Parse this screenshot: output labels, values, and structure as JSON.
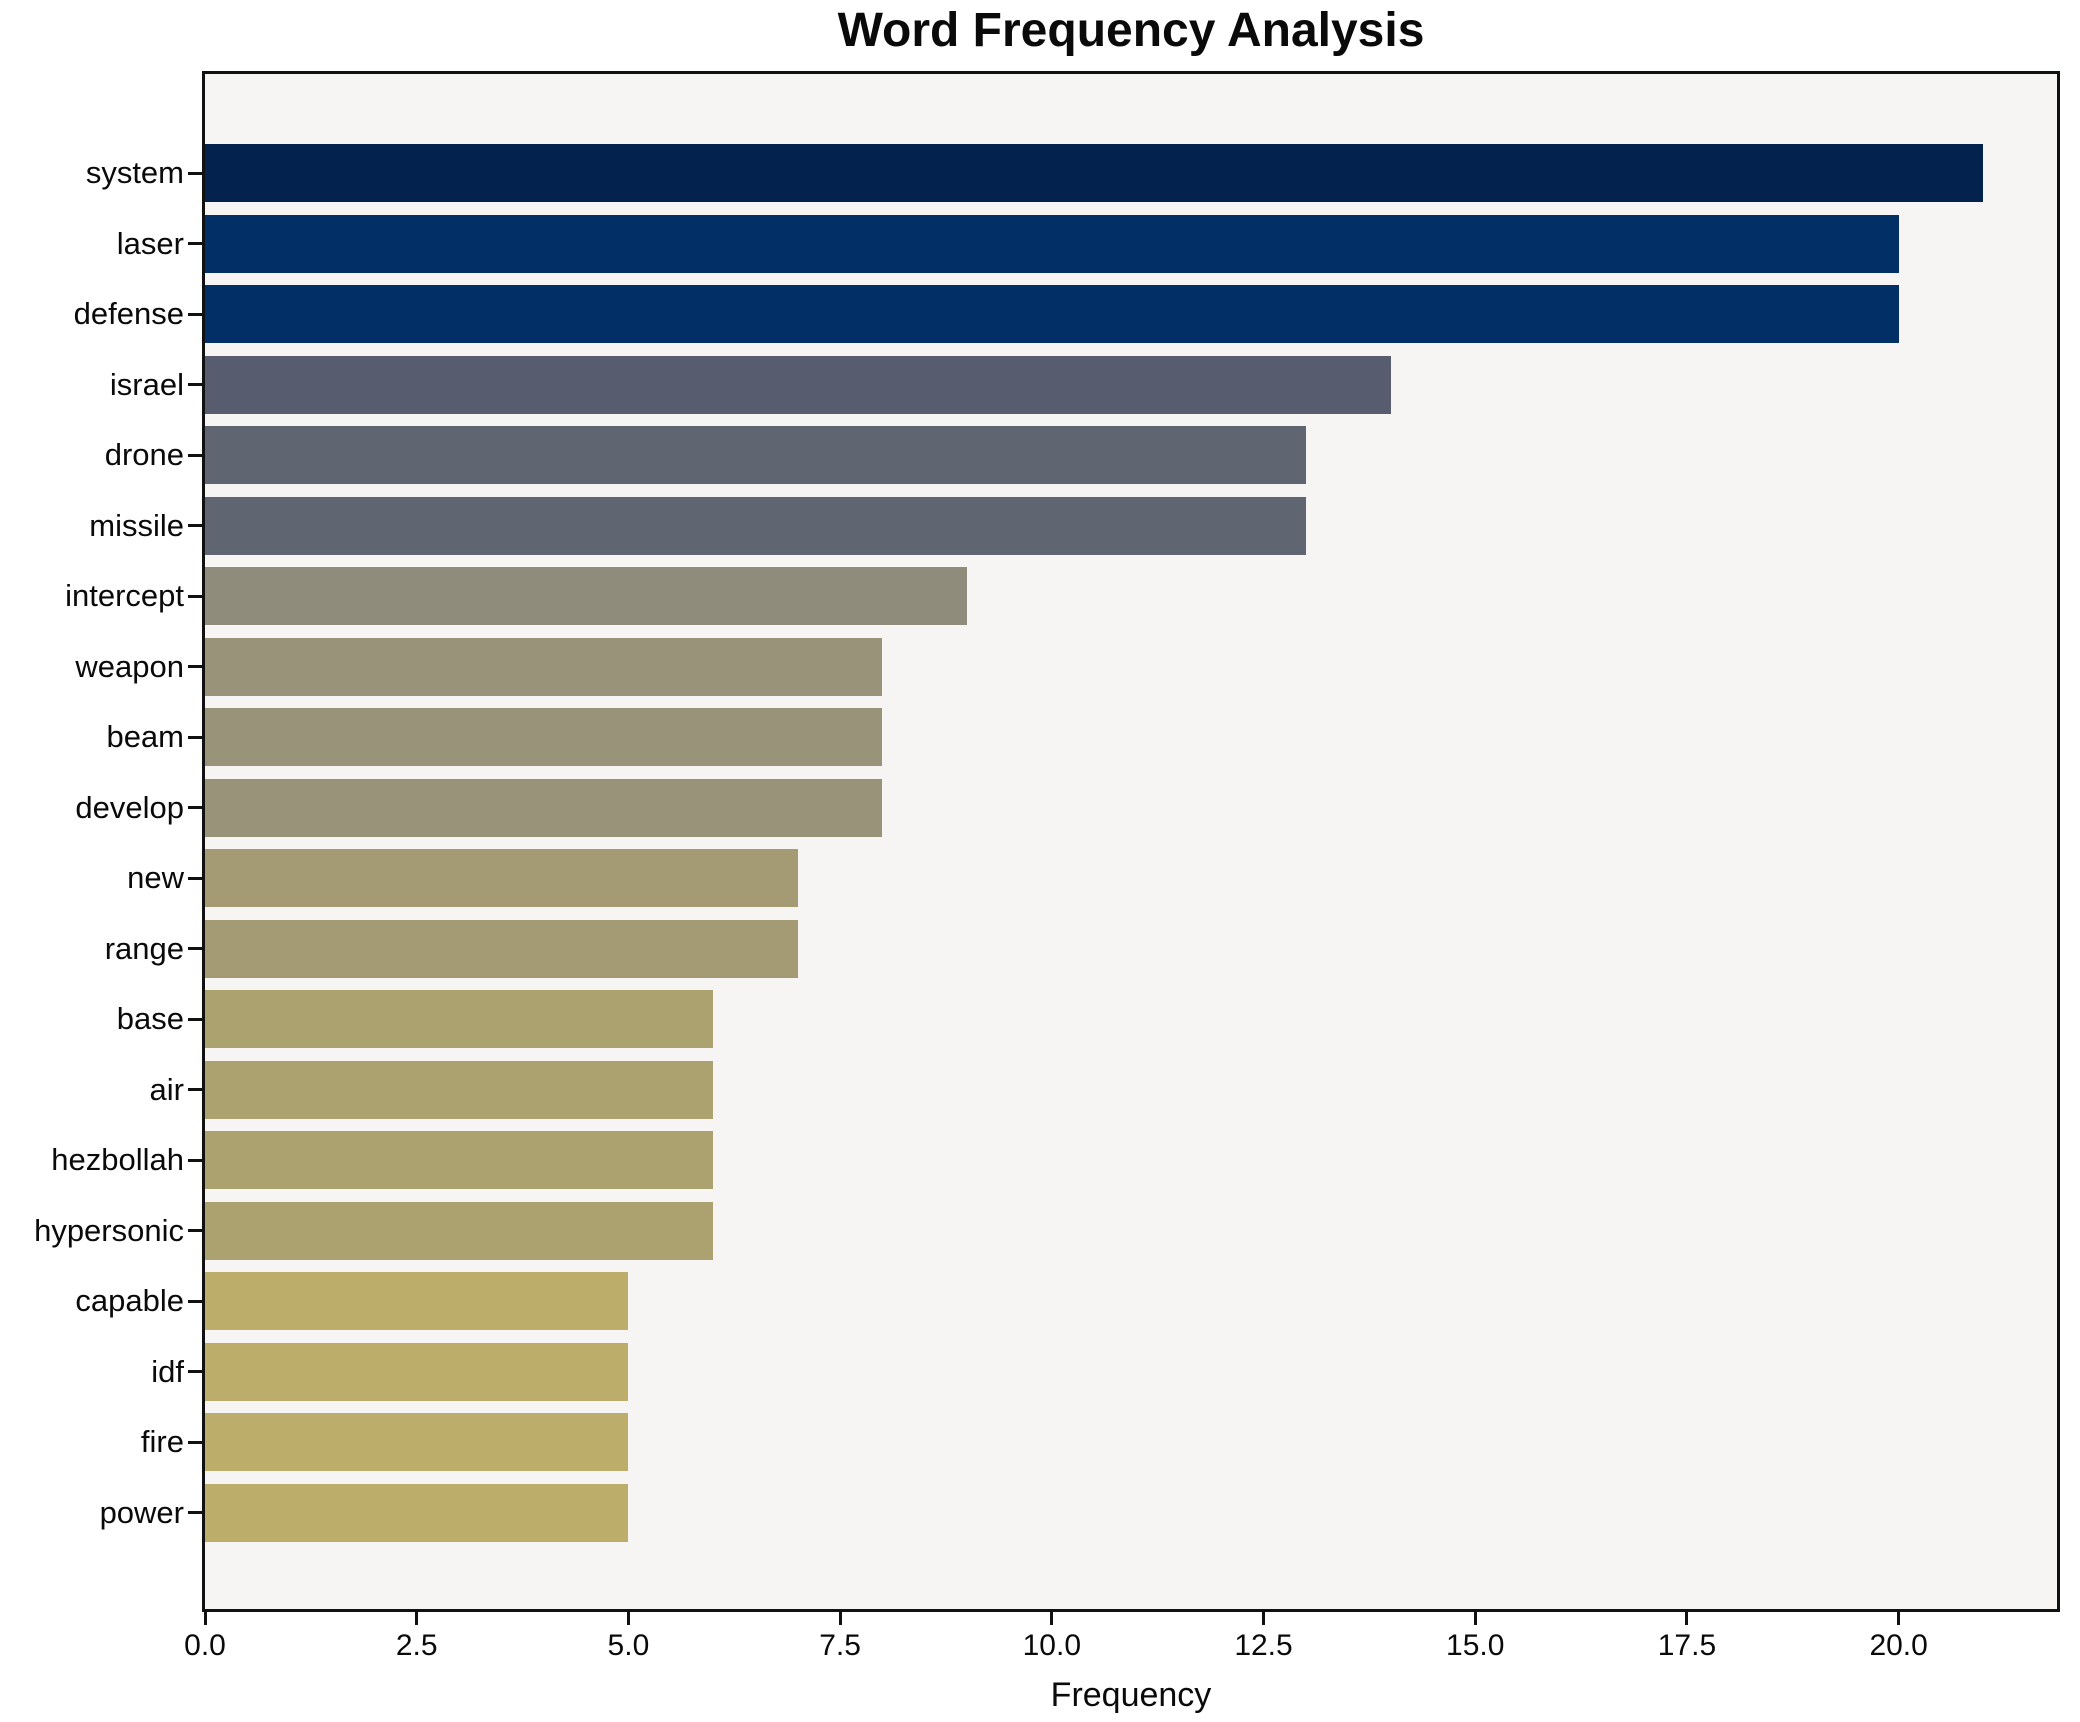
{
  "chart_data": {
    "type": "bar",
    "orientation": "horizontal",
    "title": "Word Frequency Analysis",
    "xlabel": "Frequency",
    "ylabel": "",
    "categories": [
      "system",
      "laser",
      "defense",
      "israel",
      "drone",
      "missile",
      "intercept",
      "weapon",
      "beam",
      "develop",
      "new",
      "range",
      "base",
      "air",
      "hezbollah",
      "hypersonic",
      "capable",
      "idf",
      "fire",
      "power"
    ],
    "values": [
      21,
      20,
      20,
      14,
      13,
      13,
      9,
      8,
      8,
      8,
      7,
      7,
      6,
      6,
      6,
      6,
      5,
      5,
      5,
      5
    ],
    "bar_colors": [
      "#04224e",
      "#023066",
      "#023066",
      "#575d6e",
      "#606572",
      "#606572",
      "#908c7b",
      "#99937a",
      "#99937a",
      "#99937a",
      "#a49b74",
      "#a49b74",
      "#aca26f",
      "#aca26f",
      "#aca26f",
      "#aca26f",
      "#bcae6a",
      "#bcae6a",
      "#bcae6a",
      "#bcae6a"
    ],
    "xlim": [
      0,
      21.87
    ],
    "x_ticks": [
      0,
      2.5,
      5,
      7.5,
      10,
      12.5,
      15,
      17.5,
      20
    ],
    "x_tick_labels": [
      "0.0",
      "2.5",
      "5.0",
      "7.5",
      "10.0",
      "12.5",
      "15.0",
      "17.5",
      "20.0"
    ],
    "grid": false,
    "legend": null,
    "style": {
      "figure_bg": "#ffffff",
      "plot_bg": "#f6f5f3",
      "spine_color": "#111111",
      "text_color": "#0a0a0a"
    }
  }
}
